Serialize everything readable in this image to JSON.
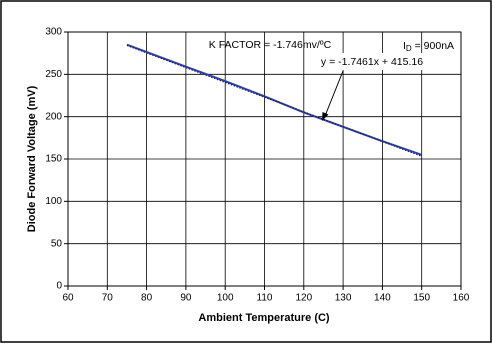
{
  "chart_data": {
    "type": "line",
    "x_label": "Ambient Temperature (C)",
    "y_label": "Diode Forward Voltage (mV)",
    "annotations": {
      "k_factor": "K FACTOR = -1.746mv/ºC",
      "current_symbol": "I",
      "current_subscript": "D",
      "current_value": " = 900nA",
      "trendline_equation": "y = -1.7461x + 415.16"
    },
    "x": [
      75,
      90,
      100,
      110,
      120,
      130,
      140,
      150
    ],
    "series": [
      {
        "color": "#2b3fbf",
        "style": "solid",
        "values": [
          285,
          259,
          242,
          224,
          205,
          188,
          171,
          155
        ]
      },
      {
        "color": "#222244",
        "style": "dotted",
        "values": [
          284.2,
          258.0,
          240.5,
          223.1,
          205.6,
          188.1,
          170.7,
          153.2
        ]
      }
    ],
    "xlim": [
      60,
      160
    ],
    "xticks": [
      60,
      70,
      80,
      90,
      100,
      110,
      120,
      130,
      140,
      150,
      160
    ],
    "ylim": [
      0,
      300
    ],
    "yticks": [
      0,
      50,
      100,
      150,
      200,
      250,
      300
    ],
    "grid": true
  }
}
